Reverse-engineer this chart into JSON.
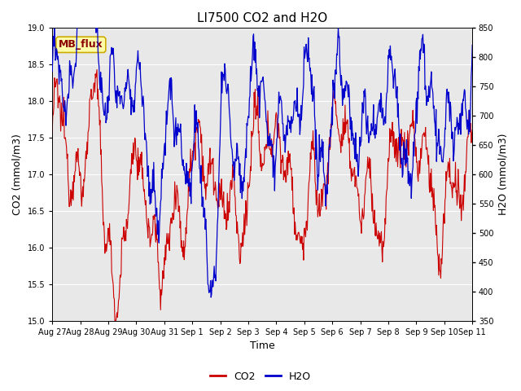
{
  "title": "LI7500 CO2 and H2O",
  "xlabel": "Time",
  "ylabel_left": "CO2 (mmol/m3)",
  "ylabel_right": "H2O (mmol/m3)",
  "annotation": "MB_flux",
  "co2_ylim": [
    15.0,
    19.0
  ],
  "h2o_ylim": [
    350,
    850
  ],
  "co2_yticks": [
    15.0,
    15.5,
    16.0,
    16.5,
    17.0,
    17.5,
    18.0,
    18.5,
    19.0
  ],
  "h2o_yticks": [
    350,
    400,
    450,
    500,
    550,
    600,
    650,
    700,
    750,
    800,
    850
  ],
  "xtick_labels": [
    "Aug 27",
    "Aug 28",
    "Aug 29",
    "Aug 30",
    "Aug 31",
    "Sep 1",
    "Sep 2",
    "Sep 3",
    "Sep 4",
    "Sep 5",
    "Sep 6",
    "Sep 7",
    "Sep 8",
    "Sep 9",
    "Sep 10",
    "Sep 11"
  ],
  "co2_color": "#cc0000",
  "h2o_color": "#0000cc",
  "bg_color": "#e8e8e8",
  "white_color": "#ffffff",
  "title_fontsize": 11,
  "axis_fontsize": 9,
  "tick_fontsize": 7,
  "legend_fontsize": 9,
  "annot_fontsize": 9,
  "figsize": [
    6.4,
    4.8
  ],
  "dpi": 100
}
